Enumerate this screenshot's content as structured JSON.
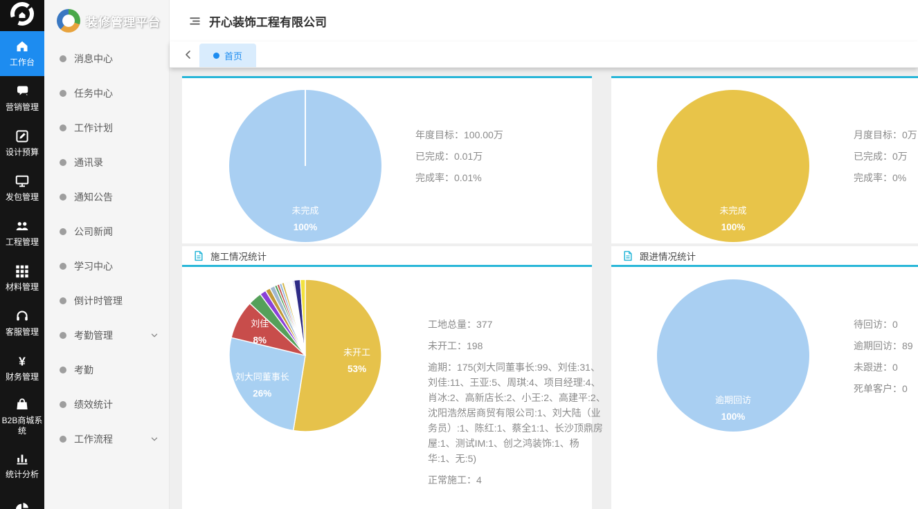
{
  "brand": {
    "logo_text": "装修管理平台"
  },
  "header": {
    "company_name": "开心装饰工程有限公司"
  },
  "tabs": {
    "items": [
      {
        "label": "首页",
        "active": true
      }
    ]
  },
  "rail": {
    "items": [
      {
        "label": "工作台",
        "icon": "home-icon",
        "active": true
      },
      {
        "label": "营销管理",
        "icon": "chat-icon",
        "active": false
      },
      {
        "label": "设计预算",
        "icon": "edit-icon",
        "active": false
      },
      {
        "label": "发包管理",
        "icon": "monitor-icon",
        "active": false
      },
      {
        "label": "工程管理",
        "icon": "users-icon",
        "active": false
      },
      {
        "label": "材料管理",
        "icon": "grid-icon",
        "active": false
      },
      {
        "label": "客服管理",
        "icon": "headset-icon",
        "active": false
      },
      {
        "label": "财务管理",
        "icon": "yen-icon",
        "active": false
      },
      {
        "label": "B2B商城系统",
        "icon": "bag-icon",
        "active": false
      },
      {
        "label": "统计分析",
        "icon": "bar-chart-icon",
        "active": false
      },
      {
        "label": "",
        "icon": "pie-chart-icon",
        "active": false
      }
    ]
  },
  "menu": {
    "items": [
      {
        "label": "消息中心",
        "expandable": false
      },
      {
        "label": "任务中心",
        "expandable": false
      },
      {
        "label": "工作计划",
        "expandable": false
      },
      {
        "label": "通讯录",
        "expandable": false
      },
      {
        "label": "通知公告",
        "expandable": false
      },
      {
        "label": "公司新闻",
        "expandable": false
      },
      {
        "label": "学习中心",
        "expandable": false
      },
      {
        "label": "倒计时管理",
        "expandable": false
      },
      {
        "label": "考勤管理",
        "expandable": true
      },
      {
        "label": "考勤",
        "expandable": false
      },
      {
        "label": "绩效统计",
        "expandable": false
      },
      {
        "label": "工作流程",
        "expandable": true
      }
    ]
  },
  "colors": {
    "accent_blue": "#1d8cf0",
    "panel_cyan": "#27b6d8",
    "rail_bg": "#151515",
    "page_bg": "#efefef",
    "pie_blue": "#a9cff2",
    "pie_yellow": "#e8c449",
    "pie_red": "#c84d4b"
  },
  "chart_data": [
    {
      "type": "pie",
      "name": "annual-target-chart",
      "title": "",
      "show_header": false,
      "start_line": true,
      "slices": [
        {
          "label": "未完成",
          "value": 100,
          "pct": "100%",
          "color": "#a9cff2",
          "show_label": true
        }
      ],
      "stats": [
        "年度目标：100.00万",
        "已完成：0.01万",
        "完成率：0.01%"
      ]
    },
    {
      "type": "pie",
      "name": "monthly-target-chart",
      "title": "",
      "show_header": false,
      "start_line": false,
      "slices": [
        {
          "label": "未完成",
          "value": 100,
          "pct": "100%",
          "color": "#e8c449",
          "show_label": true
        }
      ],
      "stats": [
        "月度目标：0万",
        "已完成：0万",
        "完成率：0%"
      ]
    },
    {
      "type": "pie",
      "name": "construction-stats-chart",
      "title": "施工情况统计",
      "show_header": true,
      "start_line": false,
      "slices": [
        {
          "label": "未开工",
          "value": 198,
          "pct": "53%",
          "color": "#e6c24b",
          "show_label": true
        },
        {
          "label": "刘大同董事长",
          "value": 99,
          "pct": "26%",
          "color": "#a8d0f2",
          "show_label": true
        },
        {
          "label": "刘佳",
          "value": 31,
          "pct": "8%",
          "color": "#c84d4b",
          "show_label": true
        },
        {
          "label": "刘佳",
          "value": 11,
          "pct": "3%",
          "color": "#55a05a",
          "show_label": false
        },
        {
          "label": "王亚",
          "value": 5,
          "pct": "1%",
          "color": "#8a41d8",
          "show_label": false
        },
        {
          "label": "周琪",
          "value": 4,
          "pct": "1%",
          "color": "#c29a38",
          "show_label": false
        },
        {
          "label": "项目经理",
          "value": 4,
          "pct": "1%",
          "color": "#9fb8cf",
          "show_label": false
        },
        {
          "label": "肖冰",
          "value": 2,
          "pct": "1%",
          "color": "#4f9e54",
          "show_label": false
        },
        {
          "label": "高新店长",
          "value": 2,
          "pct": "1%",
          "color": "#c05050",
          "show_label": false
        },
        {
          "label": "小王",
          "value": 2,
          "pct": "1%",
          "color": "#8fb3d9",
          "show_label": false
        },
        {
          "label": "高建平",
          "value": 2,
          "pct": "1%",
          "color": "#d4b94e",
          "show_label": false
        },
        {
          "label": "沈阳浩然居商贸有限公司",
          "value": 1,
          "pct": "0%",
          "color": "#f0ead8",
          "show_label": false
        },
        {
          "label": "刘大陆（业务员）",
          "value": 1,
          "pct": "0%",
          "color": "#e9eef5",
          "show_label": false
        },
        {
          "label": "陈红",
          "value": 1,
          "pct": "0%",
          "color": "#f3e4e4",
          "show_label": false
        },
        {
          "label": "蔡全1",
          "value": 1,
          "pct": "0%",
          "color": "#e4f0e4",
          "show_label": false
        },
        {
          "label": "长沙顶鼎房屋",
          "value": 1,
          "pct": "0%",
          "color": "#ece4f3",
          "show_label": false
        },
        {
          "label": "测试IM",
          "value": 1,
          "pct": "0%",
          "color": "#f7f3df",
          "show_label": false
        },
        {
          "label": "创之鸿装饰",
          "value": 1,
          "pct": "0%",
          "color": "#dfeef5",
          "show_label": false
        },
        {
          "label": "杨华",
          "value": 1,
          "pct": "0%",
          "color": "#6a52c8",
          "show_label": false
        },
        {
          "label": "无",
          "value": 5,
          "pct": "1%",
          "color": "#2e2b85",
          "show_label": false
        },
        {
          "label": "正常施工",
          "value": 4,
          "pct": "1%",
          "color": "#f2e23e",
          "show_label": false
        }
      ],
      "stats": [
        "工地总量：377",
        "未开工：198",
        "逾期：175(刘大同董事长:99、刘佳:31、刘佳:11、王亚:5、周琪:4、项目经理:4、肖冰:2、高新店长:2、小王:2、高建平:2、沈阳浩然居商贸有限公司:1、刘大陆（业务员）:1、陈红:1、蔡全1:1、长沙顶鼎房屋:1、测试IM:1、创之鸿装饰:1、杨华:1、无:5)",
        "正常施工：4"
      ]
    },
    {
      "type": "pie",
      "name": "followup-stats-chart",
      "title": "跟进情况统计",
      "show_header": true,
      "start_line": false,
      "slices": [
        {
          "label": "逾期回访",
          "value": 100,
          "pct": "100%",
          "color": "#a9cff2",
          "show_label": true
        }
      ],
      "stats": [
        "待回访：0",
        "逾期回访：89",
        "未跟进：0",
        "死单客户：0"
      ]
    }
  ]
}
